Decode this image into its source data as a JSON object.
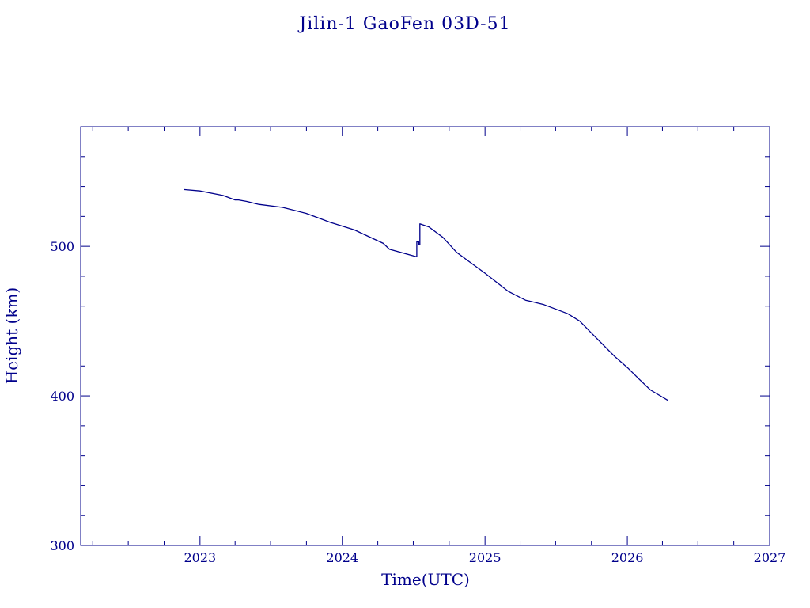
{
  "chart_data": {
    "type": "line",
    "title": "Jilin-1 GaoFen 03D-51",
    "xlabel": "Time(UTC)",
    "ylabel": "Height (km)",
    "xlim": [
      "2022-03-01",
      "2027-01-01"
    ],
    "ylim": [
      300,
      580
    ],
    "x_ticks": [
      "2023",
      "2024",
      "2025",
      "2026",
      "2027"
    ],
    "y_ticks": [
      300,
      400,
      500
    ],
    "grid": false,
    "color": "#00008b",
    "series": [
      {
        "x": [
          "2022-11-20",
          "2023-01-01",
          "2023-03-01",
          "2023-04-01",
          "2023-04-10",
          "2023-05-01",
          "2023-06-01",
          "2023-08-01",
          "2023-10-01",
          "2023-12-01",
          "2024-02-01",
          "2024-04-15",
          "2024-05-01",
          "2024-07-10",
          "2024-07-10",
          "2024-07-15",
          "2024-07-15",
          "2024-07-18",
          "2024-07-18",
          "2024-08-10",
          "2024-09-15",
          "2024-10-20",
          "2024-11-20",
          "2025-01-01",
          "2025-03-01",
          "2025-04-15",
          "2025-05-01",
          "2025-06-01",
          "2025-08-01",
          "2025-09-01",
          "2025-10-01",
          "2025-12-01",
          "2026-01-01",
          "2026-02-01",
          "2026-03-01",
          "2026-04-15"
        ],
        "y": [
          538,
          537,
          534,
          531,
          531,
          530,
          528,
          526,
          522,
          516,
          511,
          502,
          498,
          493,
          503,
          503,
          501,
          501,
          515,
          513,
          506,
          496,
          490,
          482,
          470,
          464,
          463,
          461,
          455,
          450,
          442,
          426,
          419,
          411,
          404,
          397
        ]
      }
    ]
  }
}
